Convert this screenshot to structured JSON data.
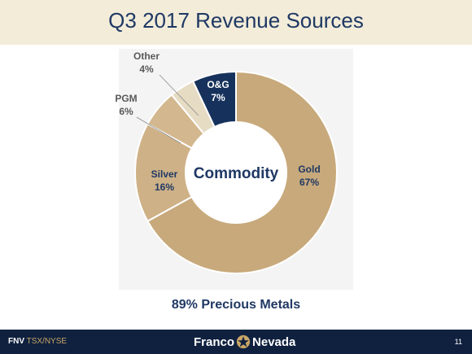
{
  "slide": {
    "title": "Q3 2017 Revenue Sources",
    "subtitle": "89% Precious Metals",
    "page_number": "11"
  },
  "footer": {
    "ticker_symbol": "FNV",
    "ticker_exchange": "TSX/NYSE",
    "logo_left": "Franco",
    "logo_right": "Nevada"
  },
  "chart_data": {
    "type": "pie",
    "center_label": "Commodity",
    "slices": [
      {
        "name": "Gold",
        "value": 67,
        "label": "67%",
        "color": "#c8a97b"
      },
      {
        "name": "Silver",
        "value": 16,
        "label": "16%",
        "color": "#ceb187"
      },
      {
        "name": "PGM",
        "value": 6,
        "label": "6%",
        "color": "#d3b78e"
      },
      {
        "name": "Other",
        "value": 4,
        "label": "4%",
        "color": "#e6dcc4"
      },
      {
        "name": "O&G",
        "value": 7,
        "label": "7%",
        "color": "#16325c"
      }
    ]
  }
}
